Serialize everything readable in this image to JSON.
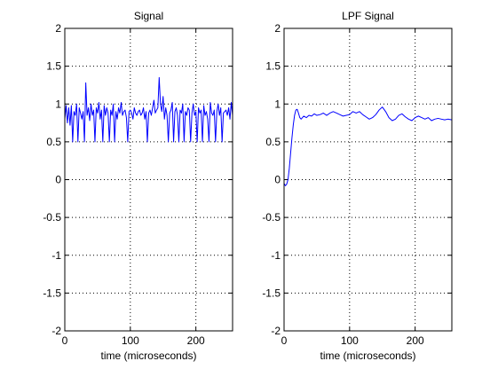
{
  "chart_data": [
    {
      "type": "line",
      "title": "Signal",
      "xlabel": "time (microseconds)",
      "ylabel": "",
      "xlim": [
        0,
        256
      ],
      "ylim": [
        -2,
        2
      ],
      "xticks": [
        "0",
        "100",
        "200"
      ],
      "yticks": [
        "-2",
        "-1.5",
        "-1",
        "-0.5",
        "0",
        "0.5",
        "1",
        "1.5",
        "2"
      ],
      "grid": true,
      "line_color": "#0000ff",
      "series": [
        {
          "x": [
            0,
            2,
            4,
            6,
            8,
            10,
            12,
            14,
            16,
            18,
            20,
            22,
            24,
            26,
            28,
            30,
            32,
            34,
            36,
            38,
            40,
            42,
            44,
            46,
            48,
            50,
            52,
            54,
            56,
            58,
            60,
            62,
            64,
            66,
            68,
            70,
            72,
            74,
            76,
            78,
            80,
            82,
            84,
            86,
            88,
            90,
            92,
            94,
            96,
            98,
            100,
            102,
            104,
            106,
            108,
            110,
            112,
            114,
            116,
            118,
            120,
            122,
            124,
            126,
            128,
            130,
            132,
            134,
            136,
            138,
            140,
            142,
            144,
            146,
            148,
            150,
            152,
            154,
            156,
            158,
            160,
            162,
            164,
            166,
            168,
            170,
            172,
            174,
            176,
            178,
            180,
            182,
            184,
            186,
            188,
            190,
            192,
            194,
            196,
            198,
            200,
            202,
            204,
            206,
            208,
            210,
            212,
            214,
            216,
            218,
            220,
            222,
            224,
            226,
            228,
            230,
            232,
            234,
            236,
            238,
            240,
            242,
            244,
            246,
            248,
            250,
            252,
            254,
            256
          ],
          "values": [
            0.8,
            0.98,
            0.75,
            0.95,
            0.72,
            0.98,
            0.5,
            0.9,
            0.85,
            1.0,
            0.5,
            0.95,
            0.88,
            0.8,
            0.9,
            0.5,
            1.28,
            0.85,
            0.95,
            0.78,
            1.0,
            0.85,
            0.92,
            0.5,
            0.95,
            0.88,
            1.02,
            0.8,
            0.92,
            0.5,
            0.98,
            0.85,
            0.95,
            0.88,
            0.5,
            0.92,
            0.85,
            1.0,
            0.5,
            0.9,
            0.8,
            0.95,
            0.88,
            1.02,
            0.85,
            0.9,
            0.92,
            0.82,
            0.5,
            0.9,
            0.92,
            0.88,
            0.8,
            0.95,
            0.88,
            0.85,
            0.9,
            0.92,
            0.85,
            0.88,
            0.95,
            0.8,
            0.9,
            0.5,
            0.88,
            0.92,
            0.85,
            0.95,
            1.05,
            0.88,
            0.92,
            0.95,
            1.35,
            1.0,
            0.9,
            1.1,
            0.8,
            0.95,
            0.85,
            0.5,
            0.88,
            0.92,
            1.02,
            0.5,
            0.9,
            0.95,
            0.85,
            0.5,
            0.92,
            0.88,
            1.0,
            0.5,
            0.9,
            0.85,
            0.95,
            0.92,
            0.5,
            0.88,
            1.0,
            0.85,
            0.9,
            0.5,
            0.95,
            0.88,
            0.92,
            0.5,
            0.98,
            0.85,
            0.9,
            0.8,
            0.5,
            1.02,
            0.88,
            0.85,
            0.92,
            0.5,
            0.9,
            1.0,
            0.85,
            0.95,
            0.5,
            0.88,
            0.9,
            0.92,
            0.85,
            0.95,
            0.8,
            1.02,
            0.85
          ]
        }
      ]
    },
    {
      "type": "line",
      "title": "LPF Signal",
      "xlabel": "time (microseconds)",
      "ylabel": "",
      "xlim": [
        0,
        256
      ],
      "ylim": [
        -2,
        2
      ],
      "xticks": [
        "0",
        "100",
        "200"
      ],
      "yticks": [
        "-2",
        "-1.5",
        "-1",
        "-0.5",
        "0",
        "0.5",
        "1",
        "1.5",
        "2"
      ],
      "grid": true,
      "line_color": "#0000ff",
      "series": [
        {
          "x": [
            0,
            2,
            4,
            6,
            8,
            10,
            12,
            14,
            16,
            18,
            20,
            22,
            24,
            26,
            28,
            30,
            34,
            38,
            42,
            46,
            50,
            55,
            60,
            65,
            70,
            75,
            80,
            85,
            90,
            95,
            100,
            105,
            110,
            115,
            120,
            125,
            130,
            135,
            140,
            145,
            150,
            155,
            160,
            165,
            170,
            175,
            180,
            185,
            190,
            195,
            200,
            205,
            210,
            215,
            220,
            225,
            230,
            235,
            240,
            245,
            250,
            256
          ],
          "values": [
            -0.05,
            -0.08,
            -0.06,
            0.0,
            0.15,
            0.35,
            0.55,
            0.72,
            0.85,
            0.92,
            0.93,
            0.88,
            0.82,
            0.8,
            0.82,
            0.84,
            0.82,
            0.85,
            0.84,
            0.87,
            0.85,
            0.86,
            0.88,
            0.85,
            0.88,
            0.9,
            0.88,
            0.86,
            0.84,
            0.85,
            0.86,
            0.9,
            0.88,
            0.9,
            0.86,
            0.83,
            0.8,
            0.82,
            0.86,
            0.92,
            0.96,
            0.9,
            0.82,
            0.78,
            0.8,
            0.85,
            0.87,
            0.83,
            0.8,
            0.78,
            0.82,
            0.84,
            0.82,
            0.8,
            0.82,
            0.78,
            0.8,
            0.81,
            0.8,
            0.79,
            0.8,
            0.79
          ]
        }
      ]
    }
  ]
}
